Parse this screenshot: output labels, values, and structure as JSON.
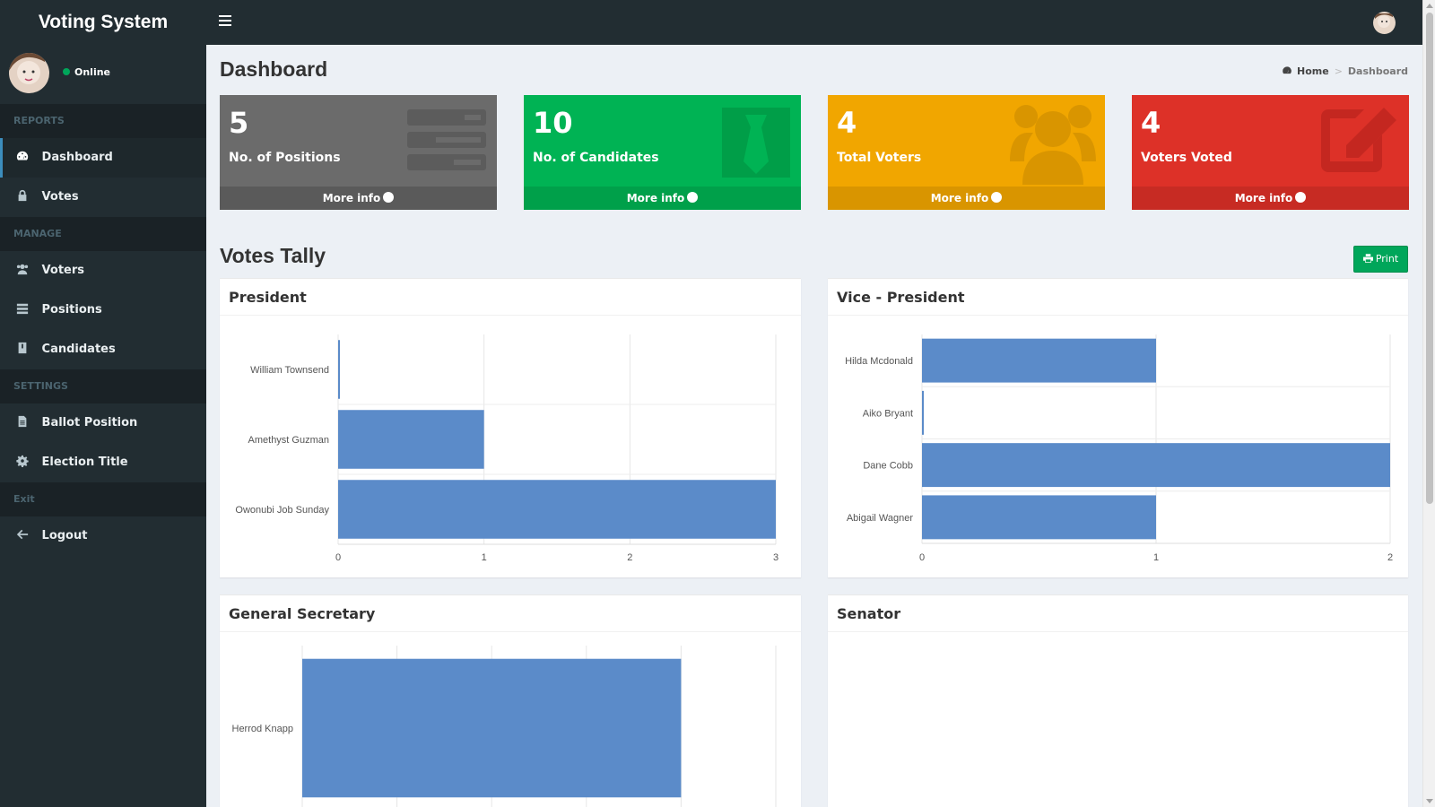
{
  "app": {
    "title": "Voting System"
  },
  "user": {
    "status": "Online"
  },
  "sidebar": {
    "sections": [
      {
        "header": "REPORTS",
        "items": [
          {
            "label": "Dashboard",
            "icon": "dashboard-icon",
            "active": true
          },
          {
            "label": "Votes",
            "icon": "lock-icon"
          }
        ]
      },
      {
        "header": "MANAGE",
        "items": [
          {
            "label": "Voters",
            "icon": "users-icon"
          },
          {
            "label": "Positions",
            "icon": "tasks-icon"
          },
          {
            "label": "Candidates",
            "icon": "id-card-icon"
          }
        ]
      },
      {
        "header": "SETTINGS",
        "items": [
          {
            "label": "Ballot Position",
            "icon": "file-icon"
          },
          {
            "label": "Election Title",
            "icon": "gear-icon"
          }
        ]
      },
      {
        "header": "Exit",
        "items": [
          {
            "label": "Logout",
            "icon": "arrow-left-icon"
          }
        ]
      }
    ]
  },
  "page": {
    "title": "Dashboard",
    "breadcrumb": {
      "home": "Home",
      "current": "Dashboard"
    }
  },
  "stats": [
    {
      "value": "5",
      "label": "No. of Positions",
      "footer": "More info",
      "icon": "list-icon",
      "color": "#6b6b6b"
    },
    {
      "value": "10",
      "label": "No. of Candidates",
      "footer": "More info",
      "icon": "tie-icon",
      "color": "#00b354"
    },
    {
      "value": "4",
      "label": "Total Voters",
      "footer": "More info",
      "icon": "users-icon",
      "color": "#f1a600"
    },
    {
      "value": "4",
      "label": "Voters Voted",
      "footer": "More info",
      "icon": "edit-icon",
      "color": "#dd3128"
    }
  ],
  "tally": {
    "title": "Votes Tally",
    "print_label": "Print"
  },
  "chart_data": [
    {
      "type": "bar",
      "title": "President",
      "orientation": "horizontal",
      "categories": [
        "William Townsend",
        "Amethyst Guzman",
        "Owonubi Job Sunday"
      ],
      "values": [
        0,
        1,
        3
      ],
      "xlim": [
        0,
        3
      ],
      "ticks": [
        0,
        1,
        2,
        3
      ],
      "color": "#5b8bc9"
    },
    {
      "type": "bar",
      "title": "Vice - President",
      "orientation": "horizontal",
      "categories": [
        "Hilda Mcdonald",
        "Aiko Bryant",
        "Dane Cobb",
        "Abigail Wagner"
      ],
      "values": [
        1,
        0,
        2,
        1
      ],
      "xlim": [
        0,
        2
      ],
      "ticks": [
        0,
        1,
        2
      ],
      "color": "#5b8bc9"
    },
    {
      "type": "bar",
      "title": "General Secretary",
      "orientation": "horizontal",
      "categories": [
        "Herrod Knapp"
      ],
      "values": [
        4
      ],
      "xlim": [
        0,
        5
      ],
      "ticks": [],
      "color": "#5b8bc9"
    },
    {
      "type": "bar",
      "title": "Senator",
      "orientation": "horizontal",
      "categories": [],
      "values": [],
      "xlim": [
        0,
        1
      ],
      "ticks": [],
      "color": "#5b8bc9"
    }
  ]
}
